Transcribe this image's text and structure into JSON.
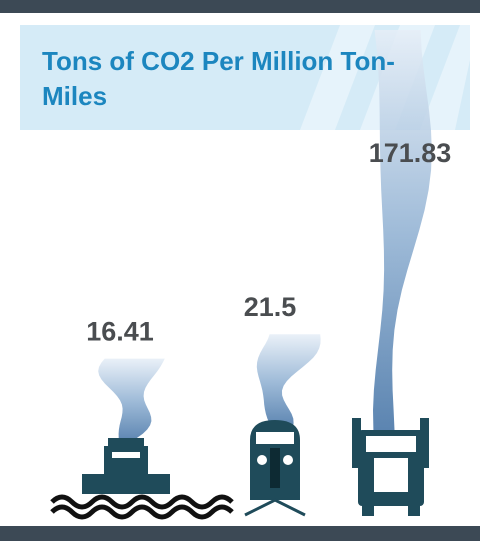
{
  "chart_data": {
    "type": "smoke",
    "title": "Tons of CO2 Per Million Ton-Miles",
    "values": [
      16.41,
      21.5,
      171.83
    ],
    "color": "#8fb0d2"
  }
}
